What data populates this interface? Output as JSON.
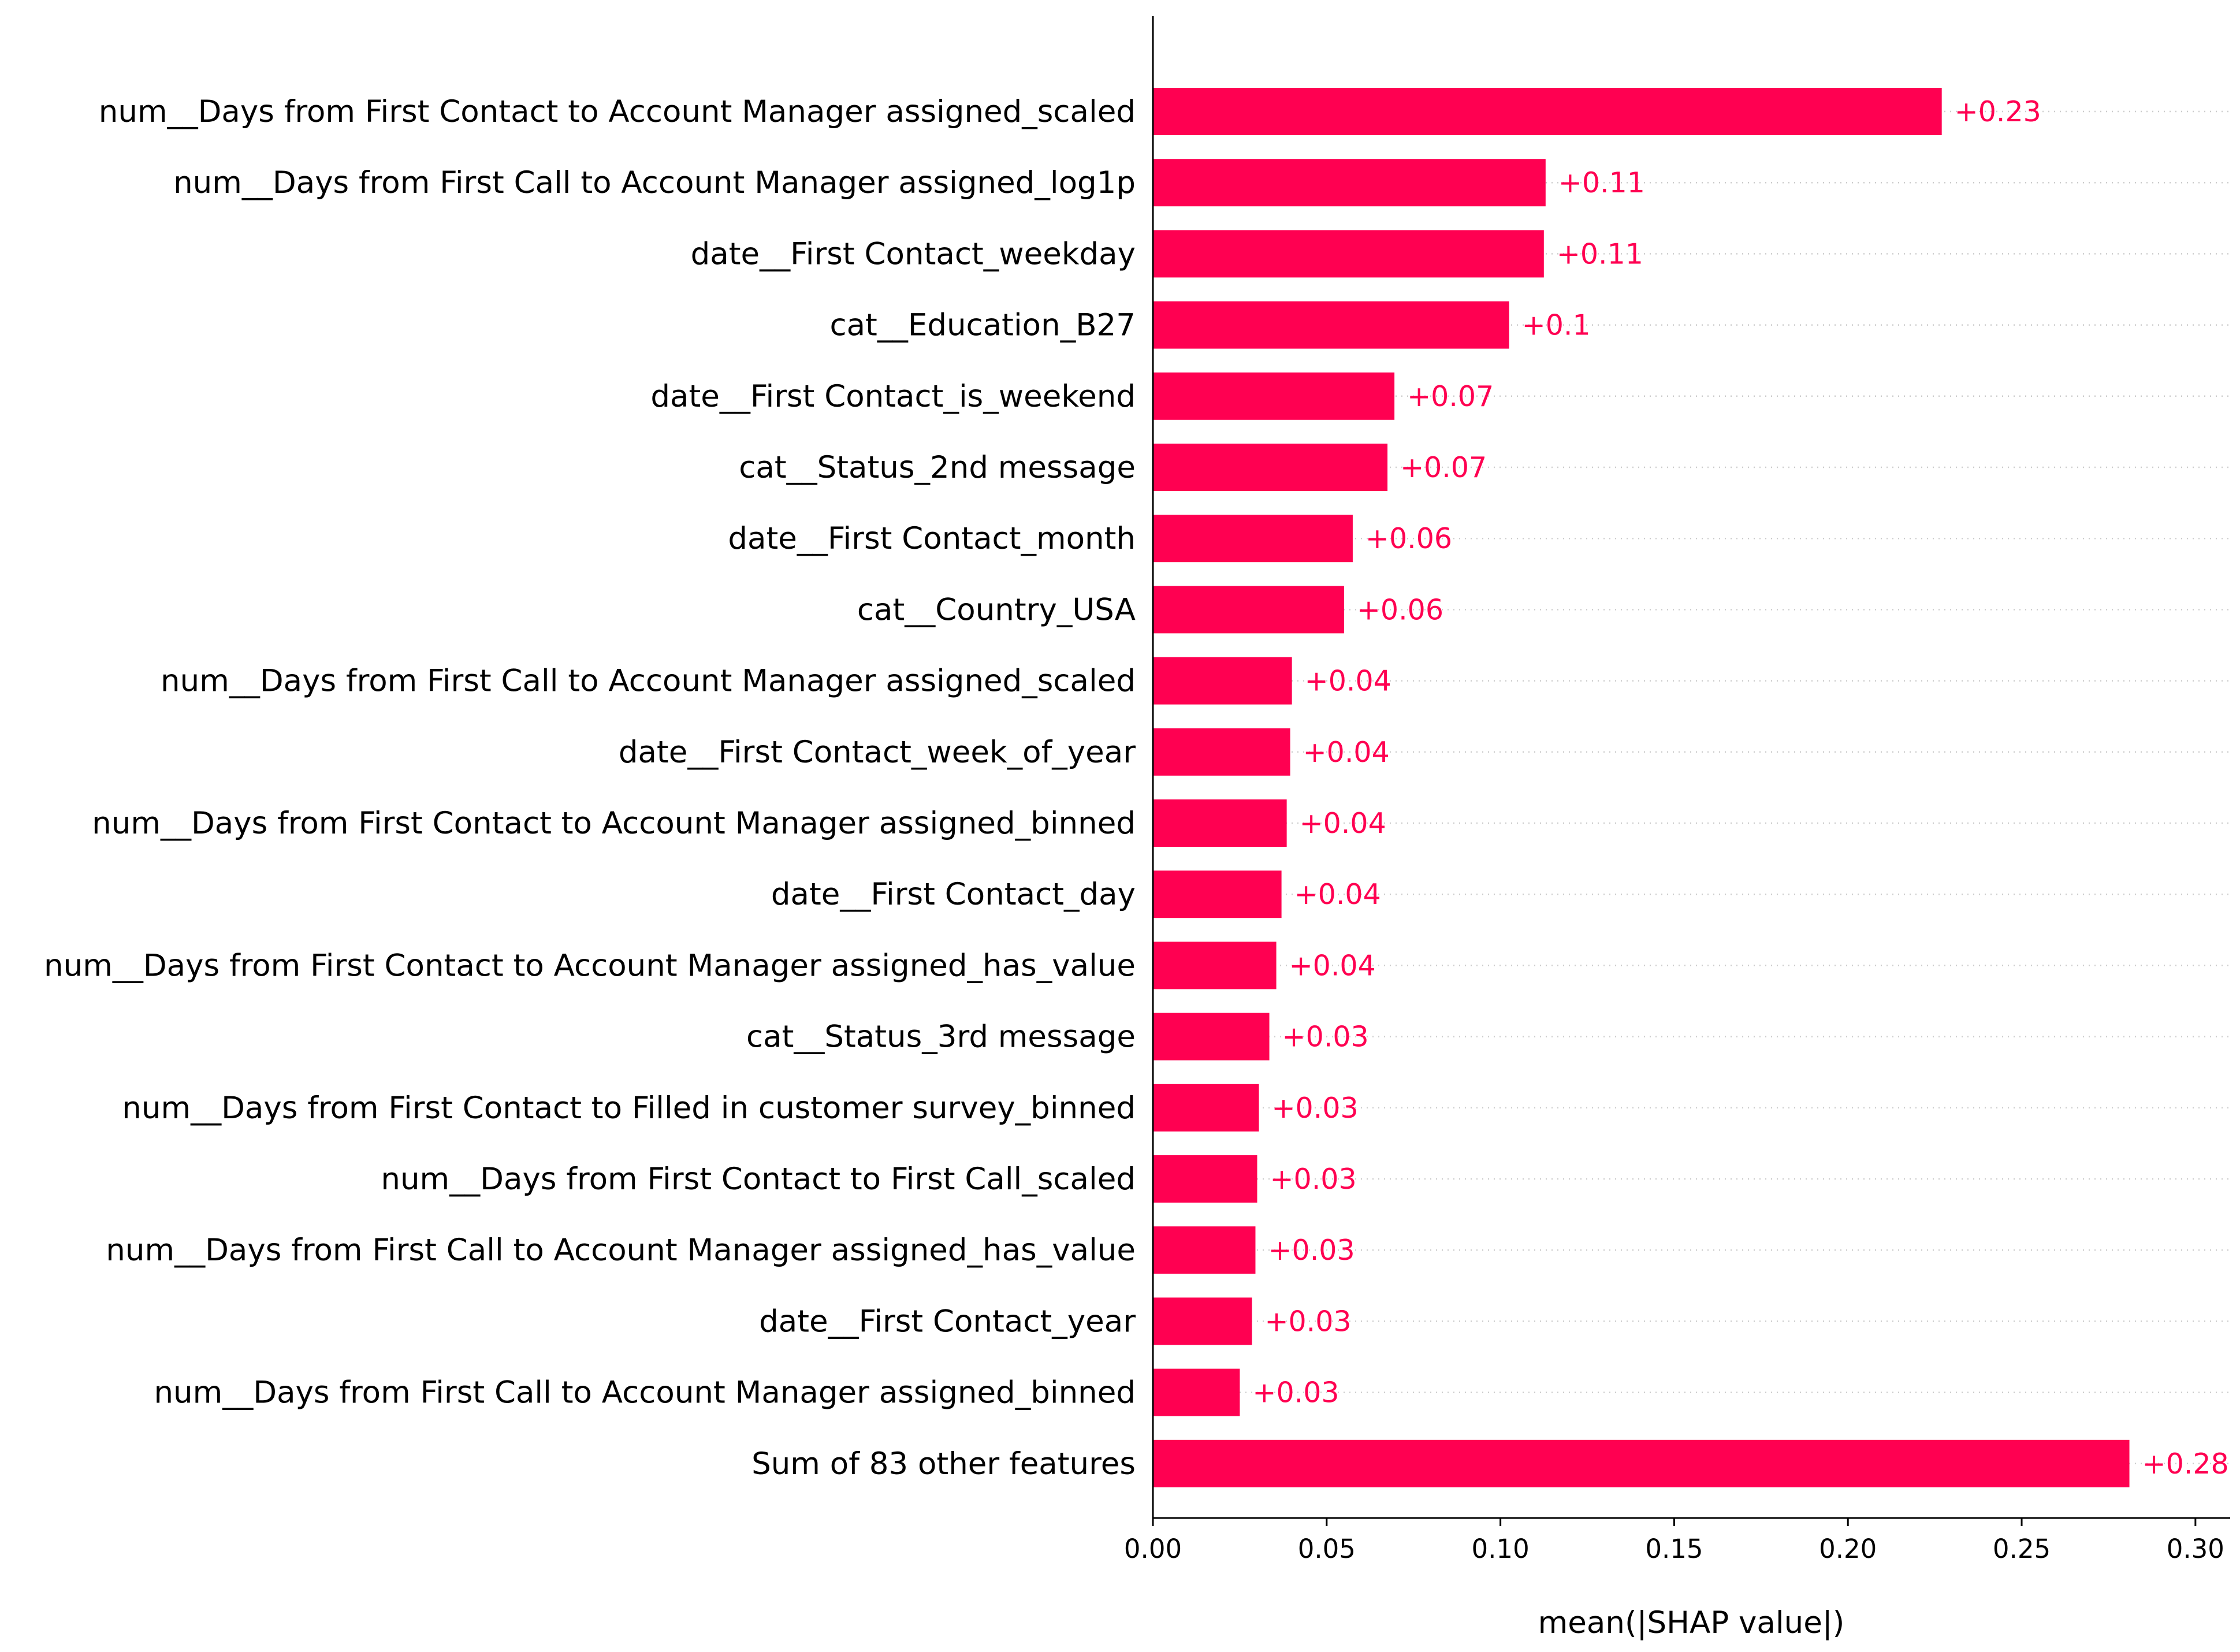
{
  "chart_data": {
    "type": "bar",
    "orientation": "horizontal",
    "categories": [
      "num__Days from First Contact to Account Manager assigned_scaled",
      "num__Days from First Call to Account Manager assigned_log1p",
      "date__First Contact_weekday",
      "cat__Education_B27",
      "date__First Contact_is_weekend",
      "cat__Status_2nd message",
      "date__First Contact_month",
      "cat__Country_USA",
      "num__Days from First Call to Account Manager assigned_scaled",
      "date__First Contact_week_of_year",
      "num__Days from First Contact to Account Manager assigned_binned",
      "date__First Contact_day",
      "num__Days from First Contact to Account Manager assigned_has_value",
      "cat__Status_3rd message",
      "num__Days from First Contact to Filled in customer survey_binned",
      "num__Days from First Contact to First Call_scaled",
      "num__Days from First Call to Account Manager assigned_has_value",
      "date__First Contact_year",
      "num__Days from First Call to Account Manager assigned_binned",
      "Sum of 83 other features"
    ],
    "values": [
      0.227,
      0.113,
      0.1125,
      0.1025,
      0.0695,
      0.0675,
      0.0575,
      0.055,
      0.04,
      0.0395,
      0.0385,
      0.037,
      0.0355,
      0.0335,
      0.0305,
      0.03,
      0.0295,
      0.0285,
      0.025,
      0.281
    ],
    "value_labels": [
      "+0.23",
      "+0.11",
      "+0.11",
      "+0.1",
      "+0.07",
      "+0.07",
      "+0.06",
      "+0.06",
      "+0.04",
      "+0.04",
      "+0.04",
      "+0.04",
      "+0.04",
      "+0.03",
      "+0.03",
      "+0.03",
      "+0.03",
      "+0.03",
      "+0.03",
      "+0.28"
    ],
    "xlabel": "mean(|SHAP value|)",
    "ylabel": "",
    "title": "",
    "xlim": [
      0,
      0.31
    ],
    "xticks": [
      0.0,
      0.05,
      0.1,
      0.15,
      0.2,
      0.25,
      0.3
    ],
    "xtick_labels": [
      "0.00",
      "0.05",
      "0.10",
      "0.15",
      "0.20",
      "0.25",
      "0.30"
    ],
    "grid": "dotted horizontal lines per row",
    "legend": "none",
    "bar_color": "#ff0051"
  }
}
